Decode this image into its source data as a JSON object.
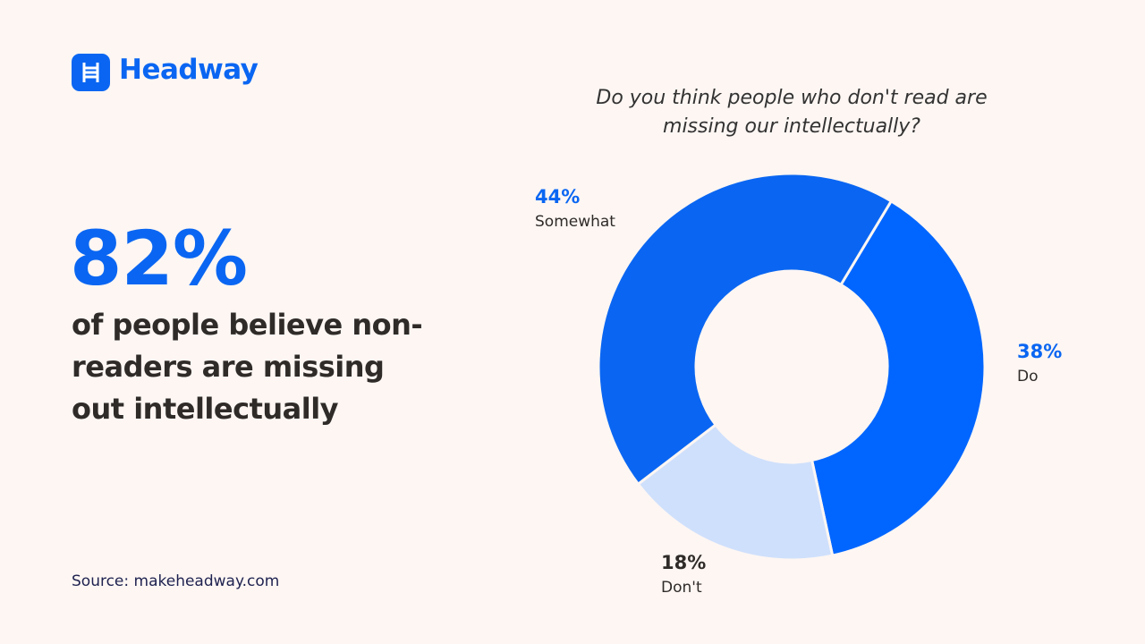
{
  "brand": "Headway",
  "stat": "82%",
  "statement": "of people believe non-readers are missing out intellectually",
  "source": "Source: makeheadway.com",
  "chart_data": {
    "type": "donut",
    "title": "Do you think people who don't read are missing our intellectually?",
    "categories": [
      "Do",
      "Don't",
      "Somewhat"
    ],
    "values": [
      38,
      18,
      44
    ],
    "value_labels": [
      "38%",
      "18%",
      "44%"
    ],
    "colors": [
      "#0066ff",
      "#cfe0fc",
      "#0a66f2"
    ],
    "label_colors": [
      "#0a66f2",
      "#2f2b29",
      "#0a66f2"
    ]
  }
}
